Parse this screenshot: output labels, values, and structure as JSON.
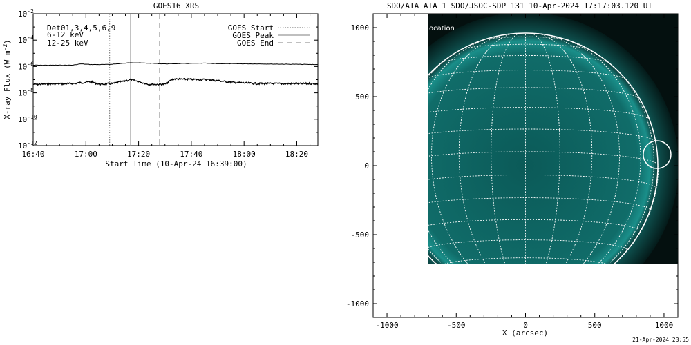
{
  "colors": {
    "magenta": "#e000e0",
    "green": "#00e000",
    "disk": "#0f6f6c",
    "limb": "#1aa7a0",
    "bg": "#ffffff"
  },
  "footer_timestamp": "21-Apr-2024 23:55",
  "chart_data": [
    {
      "type": "line",
      "title": "GOES16 XRS",
      "xlabel": "Start Time (10-Apr-24 16:39:00)",
      "ylabel_prefix": "X-ray Flux (W m",
      "ylabel_exp": "-2",
      "ylabel_suffix": ")",
      "ylim_log10": [
        -12,
        -2
      ],
      "yscale": "log",
      "yticks": [
        {
          "base": "10",
          "exp": "-2",
          "v": -2
        },
        {
          "base": "10",
          "exp": "-4",
          "v": -4
        },
        {
          "base": "10",
          "exp": "-6",
          "v": -6
        },
        {
          "base": "10",
          "exp": "-8",
          "v": -8
        },
        {
          "base": "10",
          "exp": "-10",
          "v": -10
        },
        {
          "base": "10",
          "exp": "-12",
          "v": -12
        }
      ],
      "xlim": [
        "16:40",
        "18:28"
      ],
      "xticks": [
        "16:40",
        "17:00",
        "17:20",
        "17:40",
        "18:00",
        "18:20"
      ],
      "grid": false,
      "legend_left": [
        "Det01,3,4,5,6,9",
        "6-12 keV",
        "12-25 keV"
      ],
      "legend_left_overlay": "D",
      "legend_right": [
        "GOES Start",
        "GOES Peak",
        "GOES End"
      ],
      "markers": {
        "goes_start": "17:09",
        "goes_peak": "17:17",
        "goes_end": "17:28"
      },
      "series": [
        {
          "name": "upper",
          "x": [
            "16:40",
            "16:55",
            "16:58",
            "17:02",
            "17:08",
            "17:15",
            "17:17",
            "17:30",
            "17:45",
            "17:48",
            "18:05",
            "18:28"
          ],
          "log10_flux": [
            -5.9,
            -5.9,
            -5.8,
            -5.85,
            -5.85,
            -5.75,
            -5.7,
            -5.8,
            -5.75,
            -5.78,
            -5.8,
            -5.85
          ]
        },
        {
          "name": "lower",
          "x": [
            "16:40",
            "16:55",
            "17:02",
            "17:05",
            "17:10",
            "17:17",
            "17:24",
            "17:30",
            "17:33",
            "17:47",
            "17:55",
            "18:05",
            "18:28"
          ],
          "log10_flux": [
            -7.35,
            -7.3,
            -7.15,
            -7.35,
            -7.3,
            -7.0,
            -7.35,
            -7.35,
            -6.95,
            -7.0,
            -7.2,
            -7.3,
            -7.3
          ]
        }
      ]
    },
    {
      "type": "image",
      "title": "SDO/AIA AIA_1 SDO/JSOC-SDP 131 10-Apr-2024 17:17:03.120 UT",
      "xlabel": "X (arcsec)",
      "xlim": [
        -1100,
        1100
      ],
      "ylim": [
        -1100,
        1100
      ],
      "xticks": [
        "-1000",
        "-500",
        "0",
        "500",
        "1000"
      ],
      "yticks": [
        "1000",
        "500",
        "0",
        "-500",
        "-1000"
      ],
      "annotation": "ocation",
      "flare_circle": {
        "x": 950,
        "y": 80,
        "r": 100
      },
      "disk_radius_arcsec": 960
    }
  ]
}
